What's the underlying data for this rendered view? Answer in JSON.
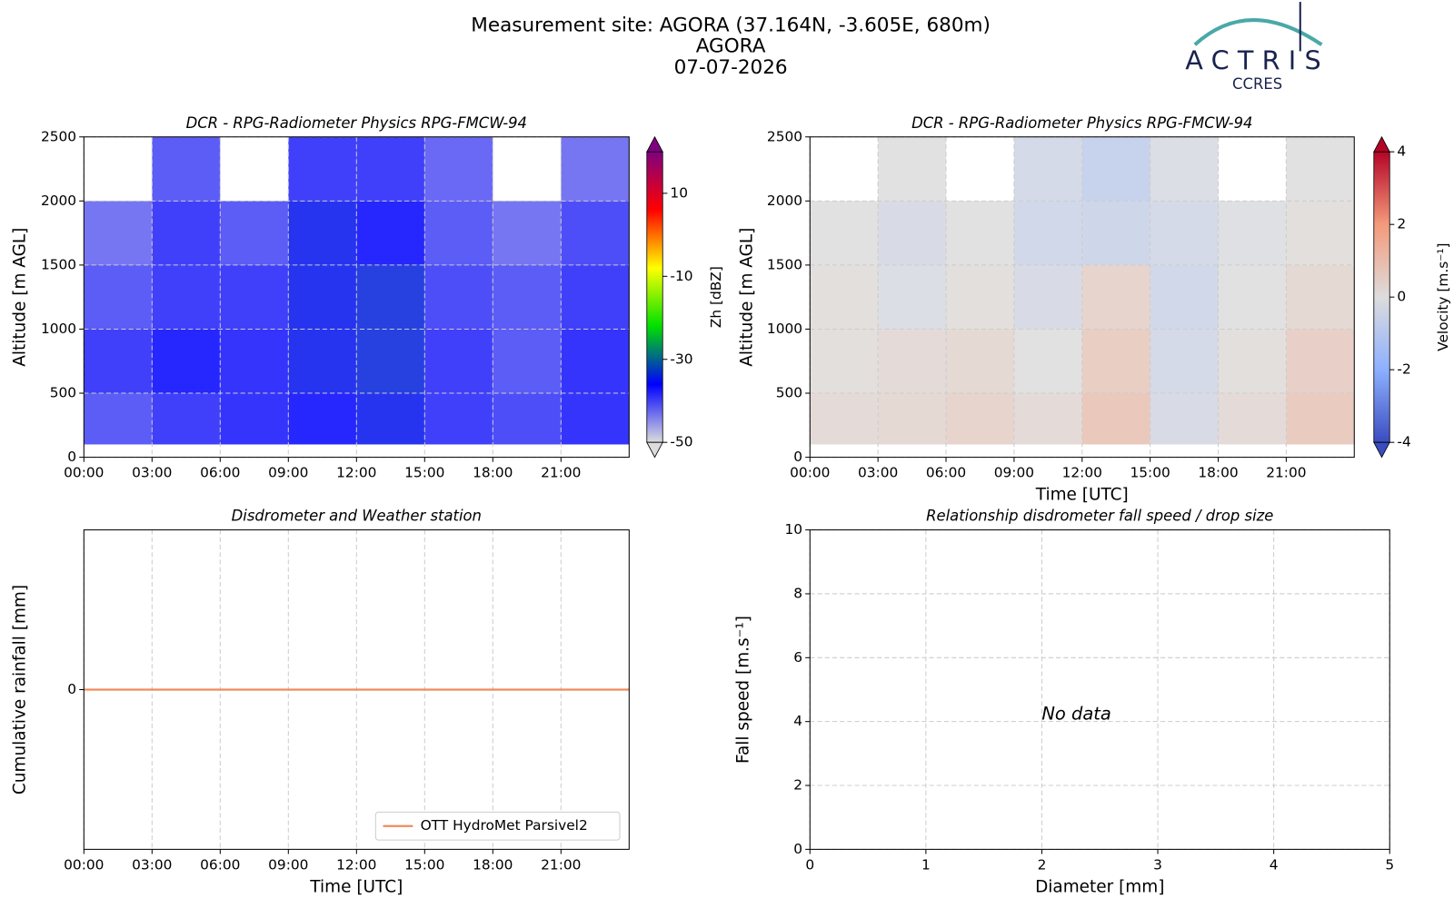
{
  "header": {
    "lines": [
      "Measurement site: AGORA (37.164N, -3.605E, 680m)",
      "AGORA",
      "07-07-2026"
    ]
  },
  "logo": {
    "name": "ACTRIS",
    "sub": "CCRES"
  },
  "chart_data": [
    {
      "type": "heatmap",
      "title": "DCR - RPG-Radiometer Physics RPG-FMCW-94",
      "y_label": "Altitude [m AGL]",
      "xlim": [
        0,
        24
      ],
      "xticks": [
        {
          "value": 0,
          "label": "00:00"
        },
        {
          "value": 3,
          "label": "03:00"
        },
        {
          "value": 6,
          "label": "06:00"
        },
        {
          "value": 9,
          "label": "09:00"
        },
        {
          "value": 12,
          "label": "12:00"
        },
        {
          "value": 15,
          "label": "15:00"
        },
        {
          "value": 18,
          "label": "18:00"
        },
        {
          "value": 21,
          "label": "21:00"
        }
      ],
      "ylim": [
        0,
        2500
      ],
      "yticks": [
        0,
        500,
        1000,
        1500,
        2000,
        2500
      ],
      "grid": true,
      "x_edges": [
        0,
        3,
        6,
        9,
        12,
        15,
        18,
        21,
        24
      ],
      "y_edges": [
        100,
        500,
        1000,
        1500,
        2000,
        2500
      ],
      "z": [
        [
          -40,
          -38,
          -37,
          -36,
          -35,
          -38,
          -39,
          -37
        ],
        [
          -38,
          -36,
          -37,
          -35,
          -34,
          -38,
          -40,
          -37
        ],
        [
          -40,
          -38,
          -38,
          -35,
          -34,
          -39,
          -40,
          -38
        ],
        [
          -42,
          -38,
          -40,
          -35,
          -36,
          -40,
          -42,
          -39
        ],
        [
          null,
          -40,
          null,
          -38,
          -38,
          -41,
          null,
          -42
        ]
      ],
      "colorbar_label": "Zh [dBZ]",
      "clim": [
        -50,
        20
      ],
      "cticks": [
        10,
        -10,
        -30,
        -50
      ],
      "colormap": [
        "#dcdcdc",
        "#0000ff",
        "#00e000",
        "#ffff00",
        "#ff0000",
        "#800080"
      ]
    },
    {
      "type": "heatmap",
      "title": "DCR - RPG-Radiometer Physics RPG-FMCW-94",
      "x_label": "Time [UTC]",
      "y_label": "Altitude [m AGL]",
      "xlim": [
        0,
        24
      ],
      "xticks": [
        {
          "value": 0,
          "label": "00:00"
        },
        {
          "value": 3,
          "label": "03:00"
        },
        {
          "value": 6,
          "label": "06:00"
        },
        {
          "value": 9,
          "label": "09:00"
        },
        {
          "value": 12,
          "label": "12:00"
        },
        {
          "value": 15,
          "label": "15:00"
        },
        {
          "value": 18,
          "label": "18:00"
        },
        {
          "value": 21,
          "label": "21:00"
        }
      ],
      "ylim": [
        0,
        2500
      ],
      "yticks": [
        0,
        500,
        1000,
        1500,
        2000,
        2500
      ],
      "grid": true,
      "x_edges": [
        0,
        3,
        6,
        9,
        12,
        15,
        18,
        21,
        24
      ],
      "y_edges": [
        100,
        500,
        1000,
        1500,
        2000,
        2500
      ],
      "z": [
        [
          0.2,
          0.3,
          0.5,
          0.2,
          0.9,
          -0.3,
          0.2,
          0.8
        ],
        [
          0.1,
          0.2,
          0.3,
          0,
          0.7,
          -0.4,
          0.1,
          0.6
        ],
        [
          0.1,
          -0.2,
          0.1,
          -0.3,
          0.5,
          -0.5,
          0,
          0.3
        ],
        [
          0,
          -0.3,
          0,
          -0.5,
          -0.6,
          -0.4,
          -0.1,
          0.1
        ],
        [
          null,
          0,
          null,
          -0.4,
          -0.8,
          -0.2,
          null,
          0
        ]
      ],
      "colorbar_label": "Velocity [m.s⁻¹]",
      "clim": [
        -4,
        4
      ],
      "cticks": [
        4,
        2,
        0,
        -2,
        -4
      ],
      "colormap": [
        "#3b4cc0",
        "#8db0fe",
        "#dddcdc",
        "#f49a7b",
        "#b40426"
      ]
    },
    {
      "type": "line",
      "title": "Disdrometer and Weather station",
      "x_label": "Time [UTC]",
      "y_label": "Cumulative rainfall [mm]",
      "xlim": [
        0,
        24
      ],
      "xticks": [
        {
          "value": 0,
          "label": "00:00"
        },
        {
          "value": 3,
          "label": "03:00"
        },
        {
          "value": 6,
          "label": "06:00"
        },
        {
          "value": 9,
          "label": "09:00"
        },
        {
          "value": 12,
          "label": "12:00"
        },
        {
          "value": 15,
          "label": "15:00"
        },
        {
          "value": 18,
          "label": "18:00"
        },
        {
          "value": 21,
          "label": "21:00"
        }
      ],
      "ylim": [
        -0.055,
        0.055
      ],
      "yticks": [
        0
      ],
      "grid": true,
      "legend": "lower right",
      "x": [
        0,
        24
      ],
      "series": [
        {
          "name": "OTT HydroMet Parsivel2",
          "color": "#f08a5d",
          "values": [
            0,
            0
          ]
        }
      ]
    },
    {
      "type": "scatter",
      "title": "Relationship disdrometer fall speed / drop size",
      "x_label": "Diameter [mm]",
      "y_label": "Fall speed [m.s⁻¹]",
      "xlim": [
        0,
        5
      ],
      "xticks": [
        0,
        1,
        2,
        3,
        4,
        5
      ],
      "ylim": [
        0,
        10
      ],
      "yticks": [
        0,
        2,
        4,
        6,
        8,
        10
      ],
      "grid": true,
      "annotation": "No data"
    }
  ]
}
